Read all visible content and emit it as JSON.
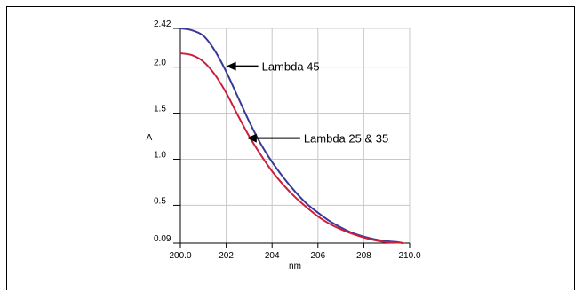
{
  "chart_data": {
    "type": "line",
    "title": "",
    "xlabel": "nm",
    "ylabel": "A",
    "xlim": [
      200.0,
      210.0
    ],
    "ylim": [
      0.09,
      2.42
    ],
    "grid": true,
    "x_ticks": [
      {
        "value": 200,
        "label": "200.0"
      },
      {
        "value": 202,
        "label": "202"
      },
      {
        "value": 204,
        "label": "204"
      },
      {
        "value": 206,
        "label": "206"
      },
      {
        "value": 208,
        "label": "208"
      },
      {
        "value": 210,
        "label": "210.0"
      }
    ],
    "y_ticks": [
      {
        "value": 0.09,
        "label": "0.09"
      },
      {
        "value": 0.5,
        "label": "0.5"
      },
      {
        "value": 1.0,
        "label": "1.0"
      },
      {
        "value": 1.5,
        "label": "1.5"
      },
      {
        "value": 2.0,
        "label": "2.0"
      },
      {
        "value": 2.42,
        "label": "2.42"
      }
    ],
    "series": [
      {
        "color": "#3a3a96",
        "x": [
          200,
          200.5,
          201,
          201.5,
          202,
          202.5,
          203,
          203.5,
          204,
          204.5,
          205,
          205.5,
          206,
          206.5,
          207,
          207.5,
          208,
          208.5,
          209,
          209.5,
          209.7
        ],
        "y": [
          2.42,
          2.4,
          2.34,
          2.18,
          1.95,
          1.68,
          1.41,
          1.17,
          0.97,
          0.8,
          0.65,
          0.52,
          0.42,
          0.33,
          0.26,
          0.2,
          0.16,
          0.13,
          0.11,
          0.1,
          0.09
        ]
      },
      {
        "color": "#cc1f3d",
        "x": [
          200,
          200.5,
          201,
          201.5,
          202,
          202.5,
          203,
          203.5,
          204,
          204.5,
          205,
          205.5,
          206,
          206.5,
          207,
          207.5,
          208,
          208.5,
          209,
          209.5,
          209.7
        ],
        "y": [
          2.15,
          2.13,
          2.06,
          1.92,
          1.72,
          1.48,
          1.25,
          1.05,
          0.87,
          0.72,
          0.59,
          0.48,
          0.38,
          0.3,
          0.24,
          0.19,
          0.15,
          0.12,
          0.1,
          0.095,
          0.09
        ]
      }
    ],
    "annotations": [
      {
        "text": "Lambda 45",
        "x": 202.0,
        "y": 2.01
      },
      {
        "text": "Lambda 25 & 35",
        "x": 202.9,
        "y": 1.23
      }
    ]
  }
}
